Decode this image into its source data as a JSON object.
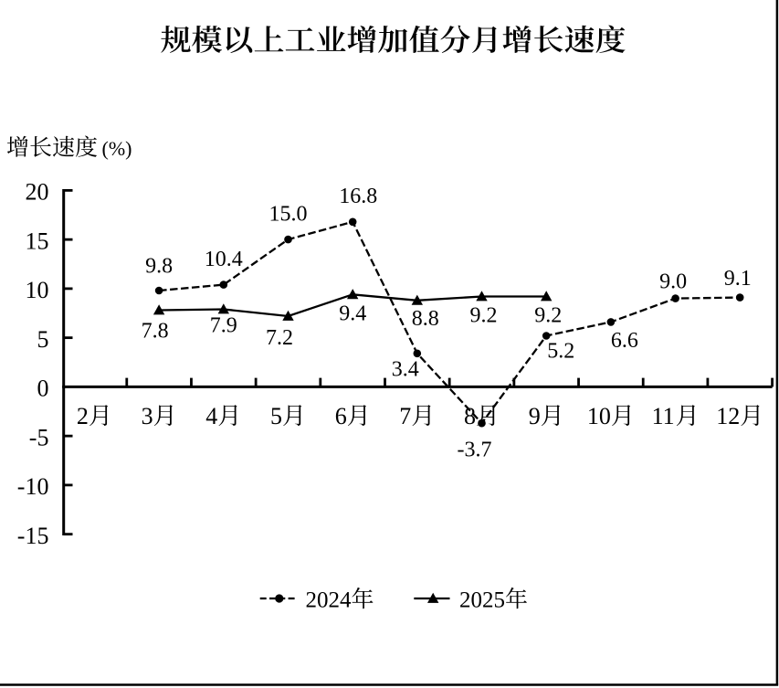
{
  "page": {
    "background": "#ffffff",
    "frame_color": "#000000"
  },
  "chart_data": {
    "type": "line",
    "title": "规模以上工业增加值分月增长速度",
    "ylabel": "增长速度(%)",
    "xlabel": "",
    "categories": [
      "2月",
      "3月",
      "4月",
      "5月",
      "6月",
      "7月",
      "8月",
      "9月",
      "10月",
      "11月",
      "12月"
    ],
    "series": [
      {
        "name": "2024年",
        "line_style": "dashed",
        "marker": "circle",
        "color": "#000000",
        "values": [
          null,
          9.8,
          10.4,
          15.0,
          16.8,
          3.4,
          -3.7,
          5.2,
          6.6,
          9.0,
          9.1
        ],
        "labels": [
          "",
          "9.8",
          "10.4",
          "15.0",
          "16.8",
          "3.4",
          "-3.7",
          "5.2",
          "6.6",
          "9.0",
          "9.1"
        ]
      },
      {
        "name": "2025年",
        "line_style": "solid",
        "marker": "triangle",
        "color": "#000000",
        "values": [
          null,
          7.8,
          7.9,
          7.2,
          9.4,
          8.8,
          9.2,
          9.2,
          null,
          null,
          null
        ],
        "labels": [
          "",
          "7.8",
          "7.9",
          "7.2",
          "9.4",
          "8.8",
          "9.2",
          "9.2",
          "",
          "",
          ""
        ]
      }
    ],
    "yticks": [
      20,
      15,
      10,
      5,
      0,
      -5,
      -10,
      -15
    ],
    "ytick_labels": [
      "20",
      "15",
      "10",
      "5",
      "0",
      "-5",
      "-10",
      "-15"
    ],
    "ylim": [
      -15,
      20
    ],
    "grid": false,
    "legend_position": "bottom"
  }
}
